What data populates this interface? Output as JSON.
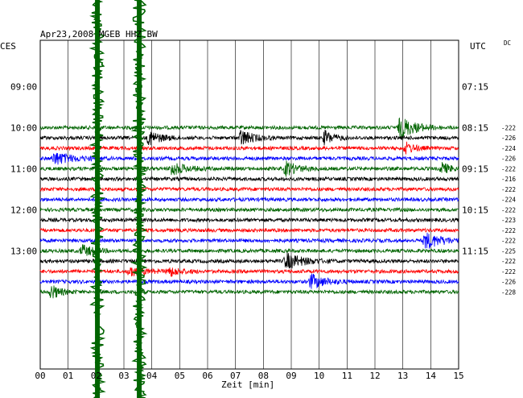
{
  "chart_data": {
    "type": "line",
    "title": "Apr23,2008   MGEB HHZ BW",
    "left_timezone": "CES",
    "right_timezone": "UTC",
    "dc_label": "DC",
    "xlabel": "Zeit [min]",
    "xlim": [
      0,
      15
    ],
    "x_ticks": [
      "00",
      "01",
      "02",
      "03",
      "04",
      "05",
      "06",
      "07",
      "08",
      "09",
      "10",
      "11",
      "12",
      "13",
      "14",
      "15"
    ],
    "left_time_labels": [
      "09:00",
      "10:00",
      "11:00",
      "12:00",
      "13:00"
    ],
    "right_time_labels": [
      "07:15",
      "08:15",
      "09:15",
      "10:15",
      "11:15"
    ],
    "row_colors": [
      "#006400",
      "#000000",
      "#ff0000",
      "#0000ff"
    ],
    "traces_start_row": 8,
    "rows_total": 32,
    "dc_values": [
      -222,
      -226,
      -224,
      -226,
      -222,
      -216,
      -222,
      -224,
      -222,
      -223,
      -222,
      -222,
      -225,
      -222,
      -222,
      -226,
      -228
    ],
    "events": [
      {
        "row": 0,
        "minute": 12.9,
        "amp": 14,
        "width": 0.5
      },
      {
        "row": 1,
        "minute": 3.9,
        "amp": 9,
        "width": 0.4
      },
      {
        "row": 1,
        "minute": 7.2,
        "amp": 10,
        "width": 0.4
      },
      {
        "row": 1,
        "minute": 10.2,
        "amp": 9,
        "width": 0.3
      },
      {
        "row": 2,
        "minute": 13.1,
        "amp": 7,
        "width": 0.3
      },
      {
        "row": 3,
        "minute": 0.5,
        "amp": 8,
        "width": 0.6
      },
      {
        "row": 4,
        "minute": 4.7,
        "amp": 8,
        "width": 0.5
      },
      {
        "row": 4,
        "minute": 8.8,
        "amp": 9,
        "width": 0.4
      },
      {
        "row": 4,
        "minute": 14.4,
        "amp": 7,
        "width": 0.3
      },
      {
        "row": 11,
        "minute": 13.8,
        "amp": 10,
        "width": 0.6
      },
      {
        "row": 12,
        "minute": 1.5,
        "amp": 7,
        "width": 0.4
      },
      {
        "row": 13,
        "minute": 8.8,
        "amp": 10,
        "width": 0.6
      },
      {
        "row": 14,
        "minute": 3.2,
        "amp": 6,
        "width": 0.5
      },
      {
        "row": 14,
        "minute": 4.6,
        "amp": 6,
        "width": 0.4
      },
      {
        "row": 15,
        "minute": 9.7,
        "amp": 9,
        "width": 0.5
      },
      {
        "row": 16,
        "minute": 0.4,
        "amp": 9,
        "width": 0.3
      }
    ],
    "noise_bursts": [
      {
        "minute": 2.05,
        "amp": 60
      },
      {
        "minute": 3.55,
        "amp": 60
      }
    ],
    "grid": true
  }
}
